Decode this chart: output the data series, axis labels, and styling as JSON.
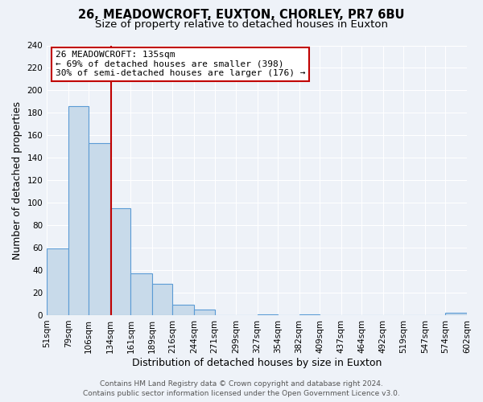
{
  "title": "26, MEADOWCROFT, EUXTON, CHORLEY, PR7 6BU",
  "subtitle": "Size of property relative to detached houses in Euxton",
  "xlabel": "Distribution of detached houses by size in Euxton",
  "ylabel": "Number of detached properties",
  "bin_edges": [
    51,
    79,
    106,
    134,
    161,
    189,
    216,
    244,
    271,
    299,
    327,
    354,
    382,
    409,
    437,
    464,
    492,
    519,
    547,
    574,
    602
  ],
  "bar_heights": [
    59,
    186,
    153,
    95,
    37,
    28,
    9,
    5,
    0,
    0,
    1,
    0,
    1,
    0,
    0,
    0,
    0,
    0,
    0,
    2
  ],
  "bar_color": "#c8daea",
  "bar_edgecolor": "#5b9bd5",
  "vline_x": 135,
  "vline_color": "#c00000",
  "annotation_title": "26 MEADOWCROFT: 135sqm",
  "annotation_line1": "← 69% of detached houses are smaller (398)",
  "annotation_line2": "30% of semi-detached houses are larger (176) →",
  "annotation_box_edgecolor": "#c00000",
  "annotation_box_facecolor": "#ffffff",
  "ylim": [
    0,
    240
  ],
  "yticks": [
    0,
    20,
    40,
    60,
    80,
    100,
    120,
    140,
    160,
    180,
    200,
    220,
    240
  ],
  "tick_labels": [
    "51sqm",
    "79sqm",
    "106sqm",
    "134sqm",
    "161sqm",
    "189sqm",
    "216sqm",
    "244sqm",
    "271sqm",
    "299sqm",
    "327sqm",
    "354sqm",
    "382sqm",
    "409sqm",
    "437sqm",
    "464sqm",
    "492sqm",
    "519sqm",
    "547sqm",
    "574sqm",
    "602sqm"
  ],
  "footer_line1": "Contains HM Land Registry data © Crown copyright and database right 2024.",
  "footer_line2": "Contains public sector information licensed under the Open Government Licence v3.0.",
  "background_color": "#eef2f8",
  "grid_color": "#ffffff",
  "title_fontsize": 10.5,
  "subtitle_fontsize": 9.5,
  "axis_label_fontsize": 9,
  "tick_fontsize": 7.5,
  "footer_fontsize": 6.5,
  "annotation_fontsize": 8.0
}
